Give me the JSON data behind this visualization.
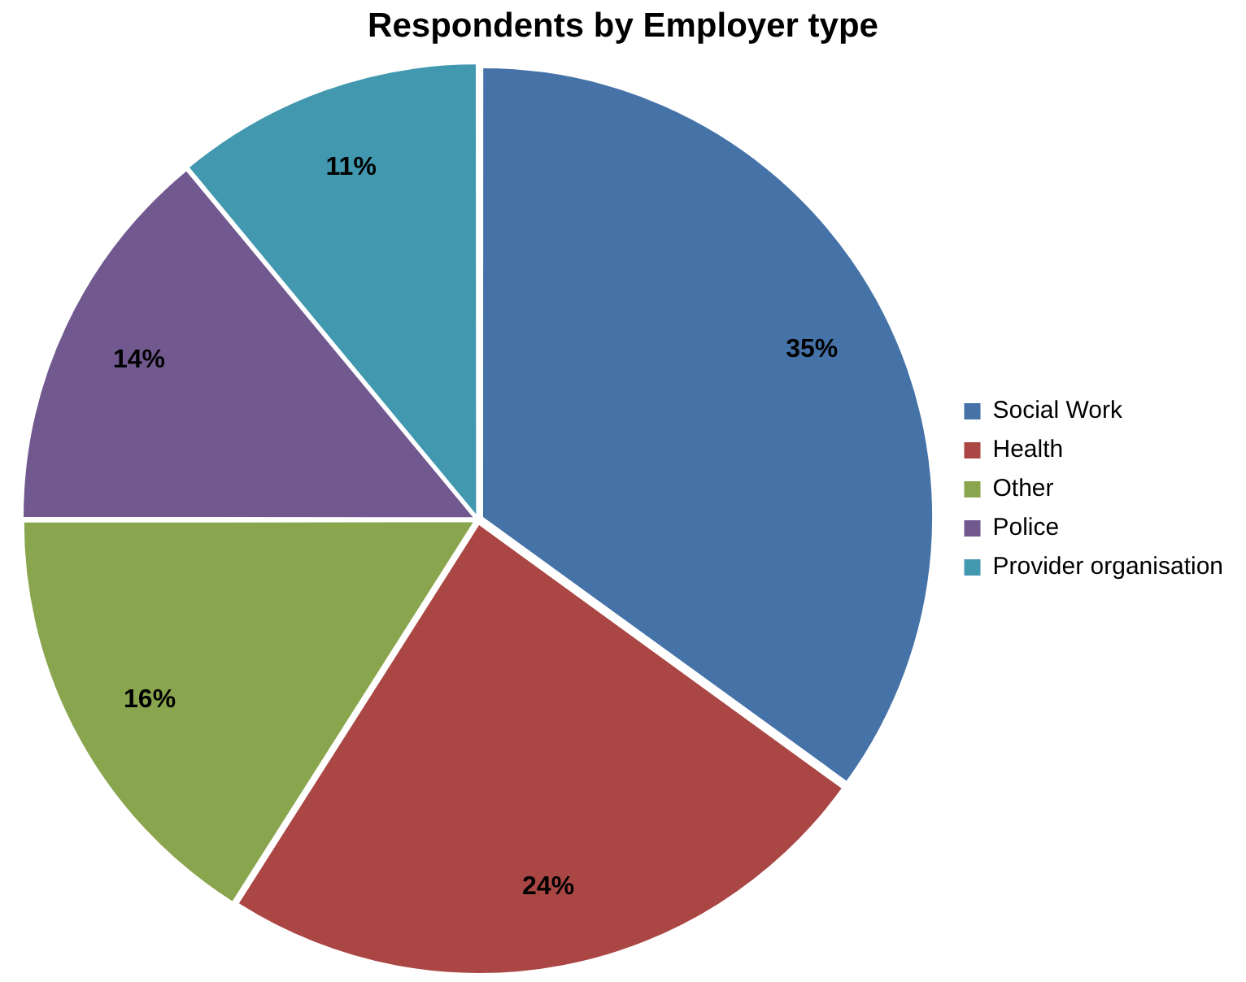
{
  "chart_data": {
    "type": "pie",
    "title": "Respondents by Employer type",
    "categories": [
      "Social Work",
      "Health",
      "Other",
      "Police",
      "Provider organisation"
    ],
    "values": [
      35,
      24,
      16,
      14,
      11
    ],
    "colors": [
      "#4572a7",
      "#aa4643",
      "#89a54e",
      "#71588f",
      "#4198af"
    ],
    "value_labels": [
      "35%",
      "24%",
      "16%",
      "14%",
      "11%"
    ],
    "legend": "right"
  }
}
